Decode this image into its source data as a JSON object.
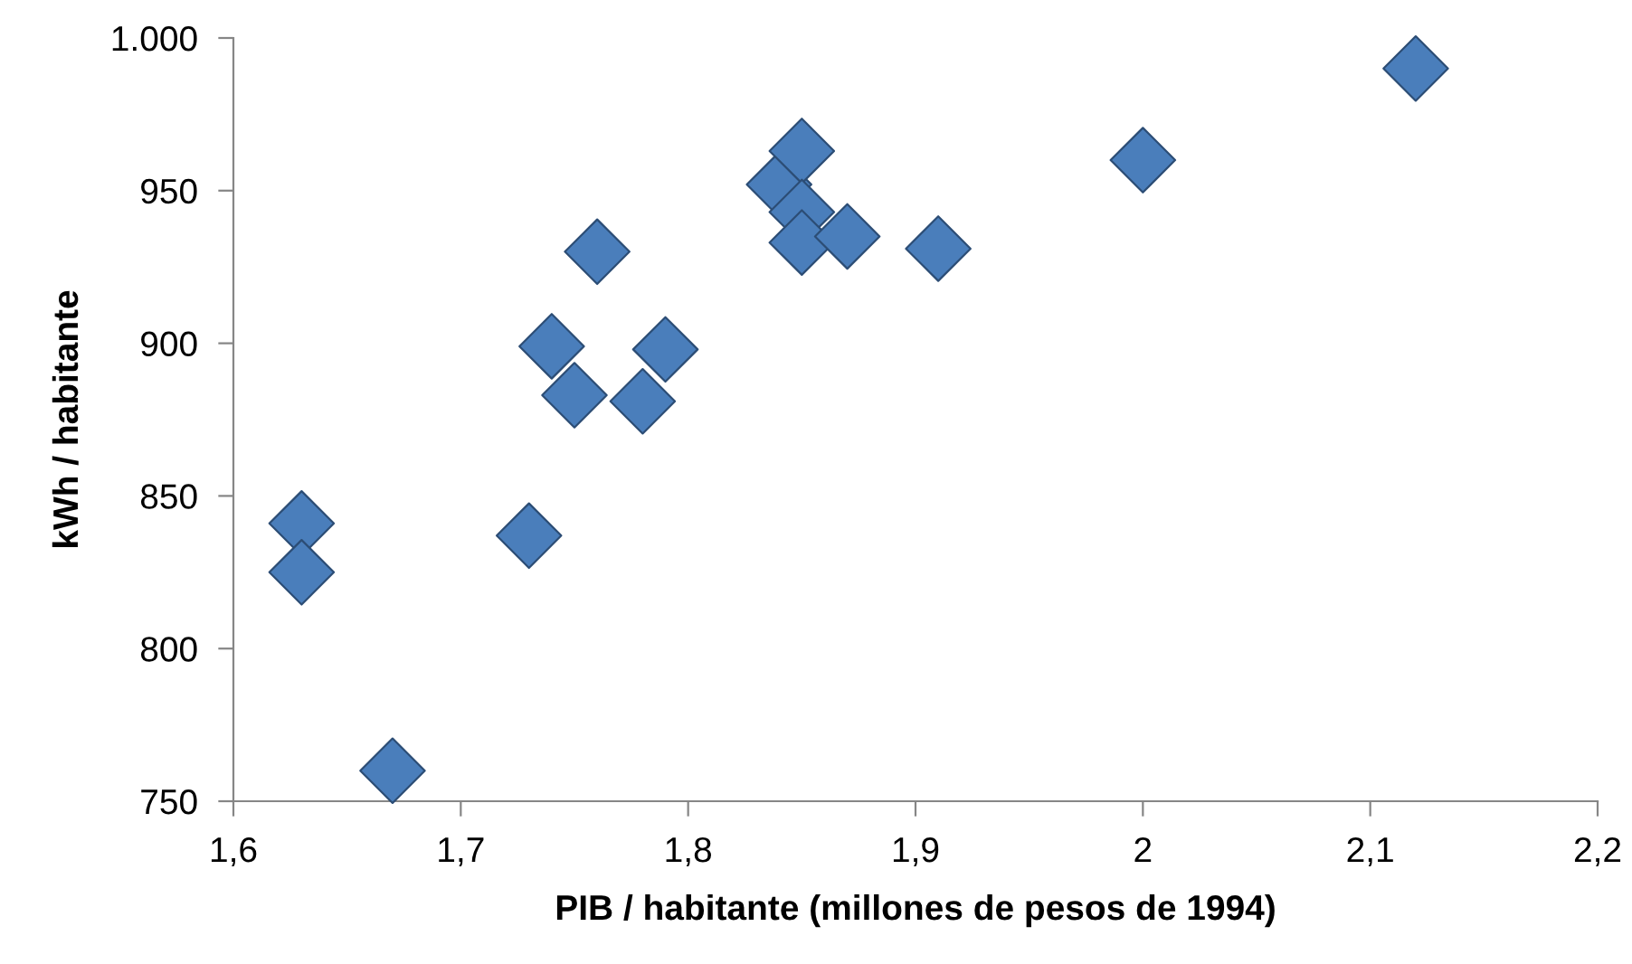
{
  "chart_data": {
    "type": "scatter",
    "xlabel": "PIB / habitante (millones de pesos de 1994)",
    "ylabel": "kWh / habitante",
    "x": [
      1.63,
      1.63,
      1.67,
      1.73,
      1.74,
      1.75,
      1.76,
      1.78,
      1.79,
      1.84,
      1.85,
      1.85,
      1.85,
      1.87,
      1.91,
      2.0,
      2.12
    ],
    "series": [
      {
        "color": "#4a7ebb",
        "values": [
          841,
          825,
          760,
          837,
          899,
          883,
          930,
          881,
          898,
          952,
          963,
          943,
          933,
          935,
          931,
          960,
          990
        ]
      }
    ],
    "marker": "diamond",
    "grid": false,
    "legend": false,
    "xlim": [
      1.6,
      2.2
    ],
    "ylim": [
      750,
      1000
    ],
    "xticks": [
      {
        "value": 1.6,
        "label": "1,6"
      },
      {
        "value": 1.7,
        "label": "1,7"
      },
      {
        "value": 1.8,
        "label": "1,8"
      },
      {
        "value": 1.9,
        "label": "1,9"
      },
      2,
      {
        "value": 2.1,
        "label": "2,1"
      },
      {
        "value": 2.2,
        "label": "2,2"
      }
    ],
    "yticks": [
      750,
      800,
      850,
      900,
      950,
      {
        "value": 1000,
        "label": "1.000"
      }
    ]
  }
}
